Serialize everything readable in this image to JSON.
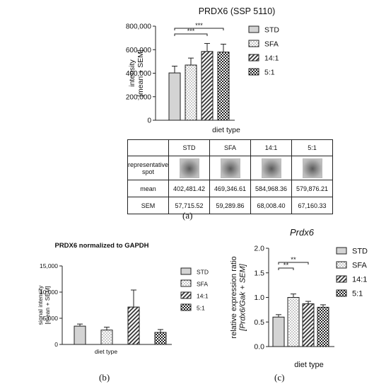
{
  "panels": {
    "a": "(a)",
    "b": "(b)",
    "c": "(c)"
  },
  "chart_data": [
    {
      "id": "a",
      "type": "bar",
      "title": "PRDX6 (SSP 5110)",
      "xlabel": "diet type",
      "ylabel": [
        "intensity",
        "[mean + SEM]"
      ],
      "ylim": [
        0,
        800000
      ],
      "yticks": [
        "0",
        "200,000",
        "400,000",
        "600,000",
        "800,000"
      ],
      "categories": [
        "STD",
        "SFA",
        "14:1",
        "5:1"
      ],
      "values": [
        402481.42,
        469346.61,
        584968.36,
        579876.21
      ],
      "errors": [
        57715.52,
        59289.86,
        68008.4,
        67160.33
      ],
      "legend": [
        "STD",
        "SFA",
        "14:1",
        "5:1"
      ],
      "legend_position": "right",
      "significance": [
        {
          "from": "STD",
          "to": "14:1",
          "label": "***"
        },
        {
          "from": "STD",
          "to": "5:1",
          "label": "***"
        }
      ]
    },
    {
      "id": "b",
      "type": "bar",
      "title": "PRDX6 normalized to GAPDH",
      "xlabel": "diet type",
      "ylabel": [
        "signal intensity",
        "[mean + SEM]"
      ],
      "ylim": [
        0,
        15000
      ],
      "yticks": [
        "0",
        "5,000",
        "10,000",
        "15,000"
      ],
      "categories": [
        "STD",
        "SFA",
        "14:1",
        "5:1"
      ],
      "values": [
        3500,
        2750,
        7150,
        2300
      ],
      "errors": [
        400,
        550,
        3250,
        550
      ],
      "legend": [
        "STD",
        "SFA",
        "14:1",
        "5:1"
      ],
      "legend_position": "right"
    },
    {
      "id": "c",
      "type": "bar",
      "title": "Prdx6",
      "xlabel": "diet type",
      "ylabel": [
        "relative expression ratio",
        "[Prdx6/Gak + SEM]"
      ],
      "ylim": [
        0,
        2.0
      ],
      "yticks": [
        "0.0",
        "0.5",
        "1.0",
        "1.5",
        "2.0"
      ],
      "categories": [
        "STD",
        "SFA",
        "14:1",
        "5:1"
      ],
      "values": [
        0.6,
        1.0,
        0.87,
        0.8
      ],
      "errors": [
        0.05,
        0.07,
        0.05,
        0.05
      ],
      "legend": [
        "STD",
        "SFA",
        "14:1",
        "5:1"
      ],
      "legend_position": "right",
      "significance": [
        {
          "from": "STD",
          "to": "SFA",
          "label": "**"
        },
        {
          "from": "STD",
          "to": "14:1",
          "label": "**"
        }
      ]
    }
  ],
  "table": {
    "columns": [
      "STD",
      "SFA",
      "14:1",
      "5:1"
    ],
    "spot_label": "representative spot",
    "rows": [
      {
        "label": "mean",
        "values": [
          "402,481.42",
          "469,346.61",
          "584,968.36",
          "579,876.21"
        ]
      },
      {
        "label": "SEM",
        "values": [
          "57,715.52",
          "59,289.86",
          "68,008.40",
          "67,160.33"
        ]
      }
    ]
  }
}
